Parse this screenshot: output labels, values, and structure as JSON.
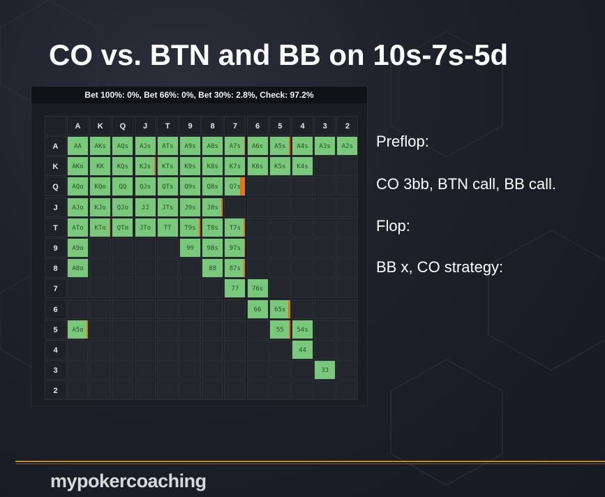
{
  "slide": {
    "title": "CO vs. BTN and BB on 10s-7s-5d",
    "notes": [
      "Preflop:",
      "CO 3bb, BTN call, BB call.",
      "Flop:",
      "BB x, CO strategy:"
    ],
    "brand": "mypokercoaching"
  },
  "range_panel": {
    "header": "Bet 100%: 0%, Bet 66%: 0%, Bet 30%: 2.8%, Check: 97.2%",
    "ranks": [
      "A",
      "K",
      "Q",
      "J",
      "T",
      "9",
      "8",
      "7",
      "6",
      "5",
      "4",
      "3",
      "2"
    ],
    "colors": {
      "in_range": "#79c97b",
      "bet_30": "#e8701f",
      "empty": "#23262c"
    },
    "hands": [
      {
        "r": 0,
        "c": 0,
        "label": "AA",
        "bet": 0
      },
      {
        "r": 0,
        "c": 1,
        "label": "AKs",
        "bet": 0
      },
      {
        "r": 0,
        "c": 2,
        "label": "AQs",
        "bet": 0
      },
      {
        "r": 0,
        "c": 3,
        "label": "AJs",
        "bet": 0
      },
      {
        "r": 0,
        "c": 4,
        "label": "ATs",
        "bet": 0
      },
      {
        "r": 0,
        "c": 5,
        "label": "A9s",
        "bet": 0
      },
      {
        "r": 0,
        "c": 6,
        "label": "A8s",
        "bet": 0
      },
      {
        "r": 0,
        "c": 7,
        "label": "A7s",
        "bet": 0.06
      },
      {
        "r": 0,
        "c": 8,
        "label": "A6s",
        "bet": 0
      },
      {
        "r": 0,
        "c": 9,
        "label": "A5s",
        "bet": 0.06
      },
      {
        "r": 0,
        "c": 10,
        "label": "A4s",
        "bet": 0
      },
      {
        "r": 0,
        "c": 11,
        "label": "A3s",
        "bet": 0
      },
      {
        "r": 0,
        "c": 12,
        "label": "A2s",
        "bet": 0
      },
      {
        "r": 1,
        "c": 0,
        "label": "AKo",
        "bet": 0
      },
      {
        "r": 1,
        "c": 1,
        "label": "KK",
        "bet": 0
      },
      {
        "r": 1,
        "c": 2,
        "label": "KQs",
        "bet": 0
      },
      {
        "r": 1,
        "c": 3,
        "label": "KJs",
        "bet": 0.06
      },
      {
        "r": 1,
        "c": 4,
        "label": "KTs",
        "bet": 0
      },
      {
        "r": 1,
        "c": 5,
        "label": "K9s",
        "bet": 0
      },
      {
        "r": 1,
        "c": 6,
        "label": "K8s",
        "bet": 0
      },
      {
        "r": 1,
        "c": 7,
        "label": "K7s",
        "bet": 0
      },
      {
        "r": 1,
        "c": 8,
        "label": "K6s",
        "bet": 0
      },
      {
        "r": 1,
        "c": 9,
        "label": "K5s",
        "bet": 0
      },
      {
        "r": 1,
        "c": 10,
        "label": "K4s",
        "bet": 0
      },
      {
        "r": 2,
        "c": 0,
        "label": "AQo",
        "bet": 0
      },
      {
        "r": 2,
        "c": 1,
        "label": "KQo",
        "bet": 0
      },
      {
        "r": 2,
        "c": 2,
        "label": "QQ",
        "bet": 0
      },
      {
        "r": 2,
        "c": 3,
        "label": "QJs",
        "bet": 0
      },
      {
        "r": 2,
        "c": 4,
        "label": "QTs",
        "bet": 0
      },
      {
        "r": 2,
        "c": 5,
        "label": "Q9s",
        "bet": 0
      },
      {
        "r": 2,
        "c": 6,
        "label": "Q8s",
        "bet": 0
      },
      {
        "r": 2,
        "c": 7,
        "label": "Q7s",
        "bet": 0.25
      },
      {
        "r": 3,
        "c": 0,
        "label": "AJo",
        "bet": 0
      },
      {
        "r": 3,
        "c": 1,
        "label": "KJo",
        "bet": 0
      },
      {
        "r": 3,
        "c": 2,
        "label": "QJo",
        "bet": 0
      },
      {
        "r": 3,
        "c": 3,
        "label": "JJ",
        "bet": 0
      },
      {
        "r": 3,
        "c": 4,
        "label": "JTs",
        "bet": 0
      },
      {
        "r": 3,
        "c": 5,
        "label": "J9s",
        "bet": 0
      },
      {
        "r": 3,
        "c": 6,
        "label": "J8s",
        "bet": 0.08
      },
      {
        "r": 4,
        "c": 0,
        "label": "ATo",
        "bet": 0
      },
      {
        "r": 4,
        "c": 1,
        "label": "KTo",
        "bet": 0.05
      },
      {
        "r": 4,
        "c": 2,
        "label": "QTo",
        "bet": 0
      },
      {
        "r": 4,
        "c": 3,
        "label": "JTo",
        "bet": 0
      },
      {
        "r": 4,
        "c": 4,
        "label": "TT",
        "bet": 0
      },
      {
        "r": 4,
        "c": 5,
        "label": "T9s",
        "bet": 0.08
      },
      {
        "r": 4,
        "c": 6,
        "label": "T8s",
        "bet": 0
      },
      {
        "r": 4,
        "c": 7,
        "label": "T7s",
        "bet": 0.08
      },
      {
        "r": 5,
        "c": 0,
        "label": "A9o",
        "bet": 0
      },
      {
        "r": 5,
        "c": 5,
        "label": "99",
        "bet": 0
      },
      {
        "r": 5,
        "c": 6,
        "label": "98s",
        "bet": 0
      },
      {
        "r": 5,
        "c": 7,
        "label": "97s",
        "bet": 0.06
      },
      {
        "r": 6,
        "c": 0,
        "label": "A8o",
        "bet": 0
      },
      {
        "r": 6,
        "c": 6,
        "label": "88",
        "bet": 0
      },
      {
        "r": 6,
        "c": 7,
        "label": "87s",
        "bet": 0.08
      },
      {
        "r": 7,
        "c": 7,
        "label": "77",
        "bet": 0
      },
      {
        "r": 7,
        "c": 8,
        "label": "76s",
        "bet": 0
      },
      {
        "r": 8,
        "c": 8,
        "label": "66",
        "bet": 0
      },
      {
        "r": 8,
        "c": 9,
        "label": "65s",
        "bet": 0.08
      },
      {
        "r": 9,
        "c": 0,
        "label": "A5o",
        "bet": 0.06
      },
      {
        "r": 9,
        "c": 9,
        "label": "55",
        "bet": 0.06
      },
      {
        "r": 9,
        "c": 10,
        "label": "54s",
        "bet": 0
      },
      {
        "r": 10,
        "c": 10,
        "label": "44",
        "bet": 0
      },
      {
        "r": 11,
        "c": 11,
        "label": "33",
        "bet": 0
      }
    ]
  }
}
